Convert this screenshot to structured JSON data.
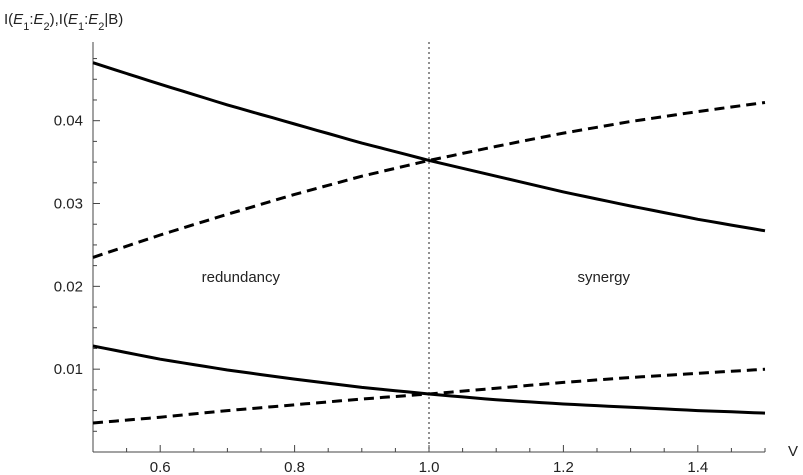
{
  "chart_data": {
    "type": "line",
    "ylabel_parts": [
      "I(",
      "E",
      "1",
      ":",
      "E",
      "2",
      "),I(",
      "E",
      "1",
      ":",
      "E",
      "2",
      "|B)"
    ],
    "xlabel": "V",
    "xlim": [
      0.5,
      1.5
    ],
    "ylim": [
      0.0,
      0.0495
    ],
    "x_ticks": [
      0.6,
      0.8,
      1.0,
      1.2,
      1.4
    ],
    "x_tick_labels": [
      "0.6",
      "0.8",
      "1.0",
      "1.2",
      "1.4"
    ],
    "y_ticks": [
      0.01,
      0.02,
      0.03,
      0.04
    ],
    "y_tick_labels": [
      "0.01",
      "0.02",
      "0.03",
      "0.04"
    ],
    "grid": false,
    "vertical_reference_line": {
      "x": 1.0,
      "style": "dotted"
    },
    "series": [
      {
        "style": "solid",
        "x": [
          0.5,
          0.6,
          0.7,
          0.8,
          0.9,
          1.0,
          1.1,
          1.2,
          1.3,
          1.4,
          1.5
        ],
        "values": [
          0.047,
          0.0444,
          0.0419,
          0.0396,
          0.0373,
          0.0352,
          0.0333,
          0.0314,
          0.0297,
          0.0281,
          0.0267
        ]
      },
      {
        "style": "dashed",
        "x": [
          0.5,
          0.6,
          0.7,
          0.8,
          0.9,
          1.0,
          1.1,
          1.2,
          1.3,
          1.4,
          1.5
        ],
        "values": [
          0.0235,
          0.0262,
          0.0287,
          0.0311,
          0.0333,
          0.0352,
          0.0369,
          0.0385,
          0.0399,
          0.0411,
          0.0422
        ]
      },
      {
        "style": "solid",
        "x": [
          0.5,
          0.6,
          0.7,
          0.8,
          0.9,
          1.0,
          1.1,
          1.2,
          1.3,
          1.4,
          1.5
        ],
        "values": [
          0.0128,
          0.0112,
          0.0099,
          0.0088,
          0.0078,
          0.007,
          0.0063,
          0.0058,
          0.0054,
          0.005,
          0.0047
        ]
      },
      {
        "style": "dashed",
        "x": [
          0.5,
          0.6,
          0.7,
          0.8,
          0.9,
          1.0,
          1.1,
          1.2,
          1.3,
          1.4,
          1.5
        ],
        "values": [
          0.0035,
          0.0042,
          0.005,
          0.0057,
          0.0064,
          0.007,
          0.0077,
          0.0084,
          0.009,
          0.0095,
          0.01
        ]
      }
    ],
    "annotations": [
      {
        "text": "redundancy",
        "x": 0.72,
        "y": 0.0205
      },
      {
        "text": "synergy",
        "x": 1.26,
        "y": 0.0205
      }
    ]
  }
}
